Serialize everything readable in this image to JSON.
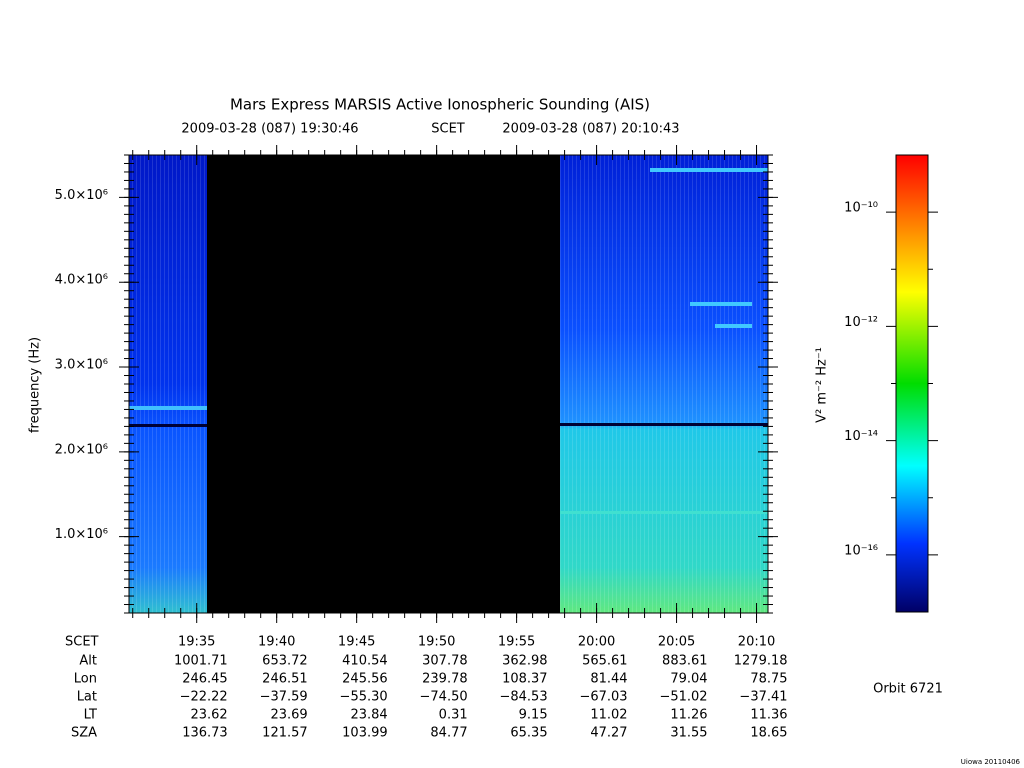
{
  "chart_data": {
    "type": "spectrogram",
    "title": "Mars Express MARSIS Active Ionospheric Sounding (AIS)",
    "start_time": "2009-03-28 (087) 19:30:46",
    "time_label": "SCET",
    "end_time": "2009-03-28 (087) 20:10:43",
    "y_label": "frequency (Hz)",
    "ylim": [
      100000,
      5500000
    ],
    "yticks": [
      {
        "value": 1000000,
        "label": "1.0×10⁶"
      },
      {
        "value": 2000000,
        "label": "2.0×10⁶"
      },
      {
        "value": 3000000,
        "label": "3.0×10⁶"
      },
      {
        "value": 4000000,
        "label": "4.0×10⁶"
      },
      {
        "value": 5000000,
        "label": "5.0×10⁶"
      }
    ],
    "xlim": [
      1170.767,
      1210.717
    ],
    "xticks": [
      {
        "value": 1175,
        "label": "19:35"
      },
      {
        "value": 1180,
        "label": "19:40"
      },
      {
        "value": 1185,
        "label": "19:45"
      },
      {
        "value": 1190,
        "label": "19:50"
      },
      {
        "value": 1195,
        "label": "19:55"
      },
      {
        "value": 1200,
        "label": "20:00"
      },
      {
        "value": 1205,
        "label": "20:05"
      },
      {
        "value": 1210,
        "label": "20:10"
      }
    ],
    "ephemeris_label": "SCET",
    "ephemeris": [
      {
        "name": "Alt",
        "values": [
          "1001.71",
          "653.72",
          "410.54",
          "307.78",
          "362.98",
          "565.61",
          "883.61",
          "1279.18"
        ]
      },
      {
        "name": "Lon",
        "values": [
          "246.45",
          "246.51",
          "245.56",
          "239.78",
          "108.37",
          "81.44",
          "79.04",
          "78.75"
        ]
      },
      {
        "name": "Lat",
        "values": [
          "−22.22",
          "−37.59",
          "−55.30",
          "−74.50",
          "−84.53",
          "−67.03",
          "−51.02",
          "−37.41"
        ]
      },
      {
        "name": "LT",
        "values": [
          "23.62",
          "23.69",
          "23.84",
          "0.31",
          "9.15",
          "11.02",
          "11.26",
          "11.36"
        ]
      },
      {
        "name": "SZA",
        "values": [
          "136.73",
          "121.57",
          "103.99",
          "84.77",
          "65.35",
          "47.27",
          "31.55",
          "18.65"
        ]
      }
    ],
    "colorbar_label": "V² m⁻² Hz⁻¹",
    "colorbar_log": true,
    "clim": [
      1e-17,
      1e-09
    ],
    "cticks": [
      {
        "value": 1e-16,
        "label": "10⁻¹⁶"
      },
      {
        "value": 1e-14,
        "label": "10⁻¹⁴"
      },
      {
        "value": 1e-12,
        "label": "10⁻¹²"
      },
      {
        "value": 1e-10,
        "label": "10⁻¹⁰"
      }
    ],
    "orbit": "Orbit 6721",
    "credit": "Uiowa 20110406"
  }
}
